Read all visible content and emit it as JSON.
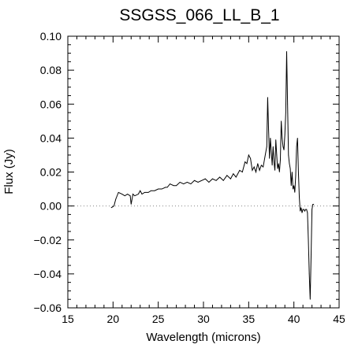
{
  "chart_data": {
    "type": "line",
    "title": "SSGSS_066_LL_B_1",
    "xlabel": "Wavelength (microns)",
    "ylabel": "Flux (Jy)",
    "xlim": [
      15,
      45
    ],
    "ylim": [
      -0.06,
      0.1
    ],
    "xticks": [
      "15",
      "20",
      "25",
      "30",
      "35",
      "40",
      "45"
    ],
    "yticks": [
      "0.10",
      "0.08",
      "0.06",
      "0.04",
      "0.02",
      "0.00",
      "−0.02",
      "−0.04",
      "−0.06"
    ],
    "zero_line": {
      "y": 0.0,
      "style": "dotted"
    },
    "grid": false,
    "series": [
      {
        "x": [
          19.8,
          20.1,
          20.3,
          20.6,
          21.0,
          21.3,
          21.6,
          21.9,
          22.0,
          22.2,
          22.4,
          22.8,
          23.0,
          23.2,
          23.5,
          23.9,
          24.2,
          24.6,
          25.0,
          25.4,
          25.8,
          26.0,
          26.3,
          26.7,
          27.0,
          27.4,
          27.8,
          28.2,
          28.6,
          29.0,
          29.4,
          29.8,
          30.2,
          30.6,
          31.0,
          31.4,
          31.8,
          32.2,
          32.6,
          33.0,
          33.3,
          33.6,
          34.0,
          34.3,
          34.6,
          34.8,
          35.0,
          35.2,
          35.4,
          35.6,
          35.8,
          36.0,
          36.2,
          36.4,
          36.6,
          36.8,
          37.0,
          37.1,
          37.2,
          37.3,
          37.4,
          37.5,
          37.6,
          37.7,
          37.8,
          37.9,
          38.0,
          38.1,
          38.2,
          38.3,
          38.4,
          38.5,
          38.6,
          38.7,
          38.8,
          38.9,
          39.0,
          39.1,
          39.2,
          39.3,
          39.4,
          39.5,
          39.6,
          39.7,
          39.8,
          39.9,
          40.0,
          40.1,
          40.2,
          40.3,
          40.4,
          40.5,
          40.6,
          40.7,
          40.8,
          40.9,
          41.0,
          41.1,
          41.2,
          41.3,
          41.4,
          41.5,
          41.6,
          41.7,
          41.8,
          41.9,
          42.0,
          42.1,
          42.2
        ],
        "y": [
          -0.001,
          0.0,
          0.004,
          0.008,
          0.007,
          0.006,
          0.007,
          0.006,
          0.001,
          0.007,
          0.006,
          0.007,
          0.009,
          0.007,
          0.008,
          0.008,
          0.009,
          0.009,
          0.01,
          0.01,
          0.011,
          0.011,
          0.013,
          0.012,
          0.012,
          0.014,
          0.013,
          0.014,
          0.013,
          0.015,
          0.014,
          0.015,
          0.016,
          0.014,
          0.016,
          0.015,
          0.017,
          0.015,
          0.018,
          0.016,
          0.019,
          0.017,
          0.021,
          0.02,
          0.026,
          0.025,
          0.03,
          0.028,
          0.021,
          0.023,
          0.02,
          0.025,
          0.021,
          0.024,
          0.023,
          0.029,
          0.035,
          0.064,
          0.045,
          0.028,
          0.04,
          0.032,
          0.024,
          0.035,
          0.026,
          0.021,
          0.039,
          0.03,
          0.022,
          0.025,
          0.02,
          0.027,
          0.05,
          0.04,
          0.035,
          0.033,
          0.042,
          0.055,
          0.091,
          0.06,
          0.03,
          0.025,
          0.022,
          0.012,
          0.02,
          0.01,
          0.012,
          0.008,
          0.018,
          0.035,
          0.04,
          0.02,
          0.005,
          -0.003,
          -0.001,
          -0.004,
          -0.002,
          -0.002,
          -0.003,
          -0.002,
          -0.002,
          -0.004,
          -0.02,
          -0.04,
          -0.055,
          -0.03,
          -0.002,
          0.001,
          0.001
        ]
      }
    ]
  }
}
